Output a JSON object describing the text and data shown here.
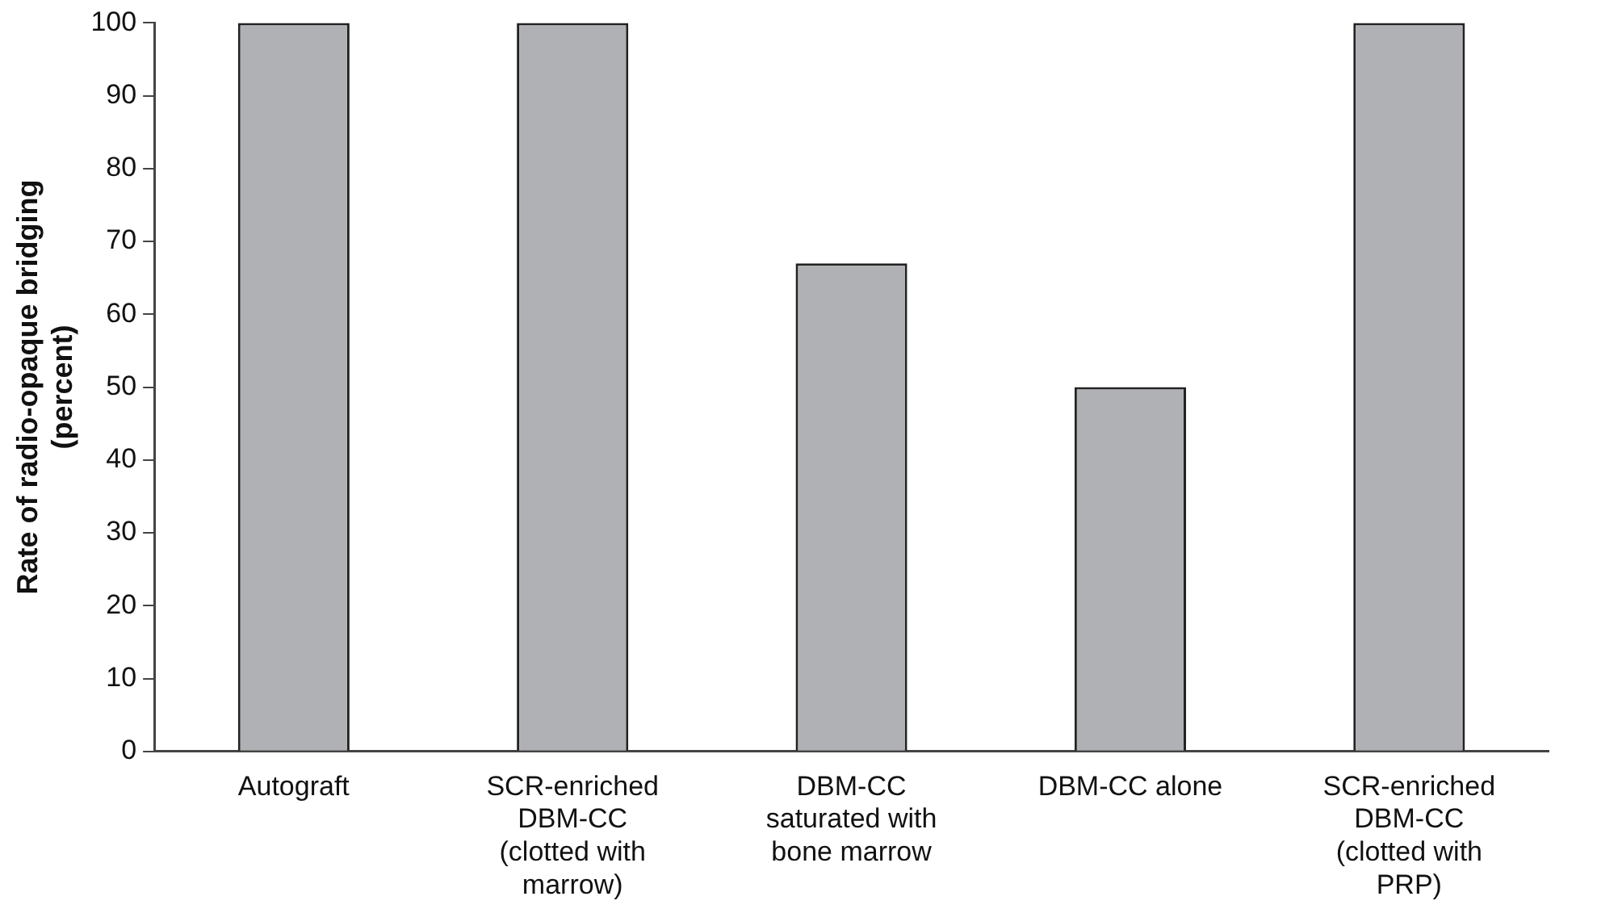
{
  "chart_data": {
    "type": "bar",
    "ylabel": "Rate of radio-opaque bridging\n(percent)",
    "categories": [
      "Autograft",
      "SCR-enriched\nDBM-CC\n(clotted with\nmarrow)",
      "DBM-CC\nsaturated with\nbone marrow",
      "DBM-CC alone",
      "SCR-enriched\nDBM-CC\n(clotted with\nPRP)"
    ],
    "values": [
      100,
      100,
      67,
      50,
      100
    ],
    "color": "#b0b1b4",
    "ylim": [
      0,
      100
    ],
    "yticks": [
      0,
      10,
      20,
      30,
      40,
      50,
      60,
      70,
      80,
      90,
      100
    ],
    "grid": false,
    "legend": false
  }
}
